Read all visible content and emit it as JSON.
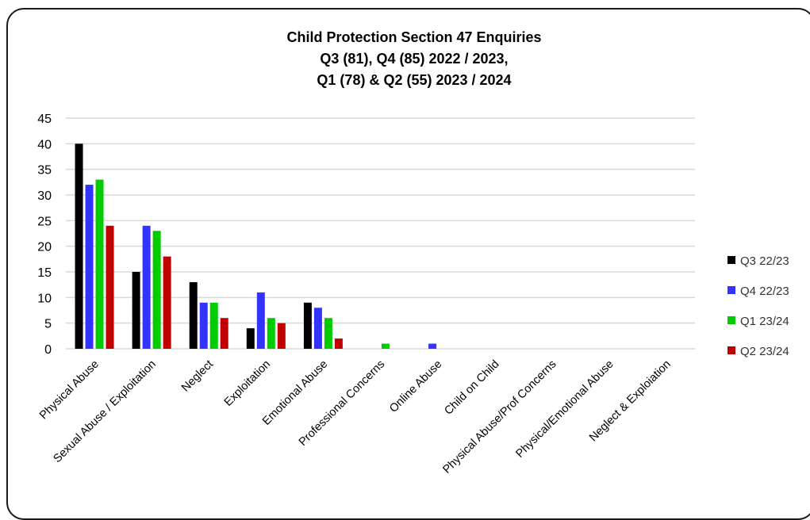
{
  "chart_data": {
    "type": "bar",
    "title_lines": [
      "Child Protection Section 47 Enquiries",
      "Q3 (81), Q4 (85) 2022 / 2023,",
      "Q1 (78) & Q2 (55) 2023 / 2024"
    ],
    "categories": [
      "Physical Abuse",
      "Sexual Abuse / Exploitation",
      "Neglect",
      "Exploitation",
      "Emotional Abuse",
      "Professional Concerns",
      "Online Abuse",
      "Child on Child",
      "Physical Abuse/Prof Concerns",
      "Physical/Emotional Abuse",
      "Neglect & Exploiation"
    ],
    "series": [
      {
        "name": "Q3 22/23",
        "color": "#000000",
        "values": [
          40,
          15,
          13,
          4,
          9,
          0,
          0,
          0,
          0,
          0,
          0
        ]
      },
      {
        "name": "Q4 22/23",
        "color": "#3333ff",
        "values": [
          32,
          24,
          9,
          11,
          8,
          0,
          1,
          0,
          0,
          0,
          0
        ]
      },
      {
        "name": "Q1 23/24",
        "color": "#00cc00",
        "values": [
          33,
          23,
          9,
          6,
          6,
          1,
          0,
          0,
          0,
          0,
          0
        ]
      },
      {
        "name": "Q2 23/24",
        "color": "#c00000",
        "values": [
          24,
          18,
          6,
          5,
          2,
          0,
          0,
          0,
          0,
          0,
          0
        ]
      }
    ],
    "ylim": [
      0,
      45
    ],
    "yticks": [
      0,
      5,
      10,
      15,
      20,
      25,
      30,
      35,
      40,
      45
    ],
    "grid": true,
    "legend_position": "right"
  }
}
